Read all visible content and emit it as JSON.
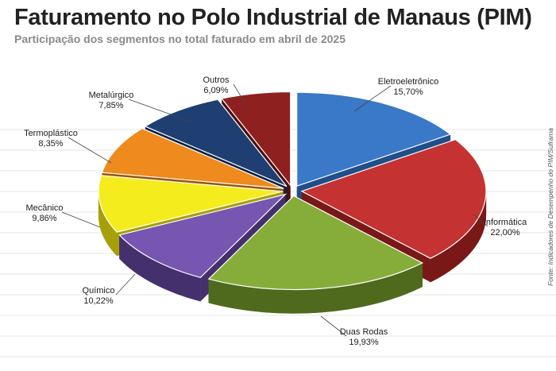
{
  "header": {
    "title": "Faturamento no Polo Industrial de Manaus (PIM)",
    "subtitle": "Participação dos segmentos no total faturado em abril de 2025"
  },
  "source": "Fonte: Indicadores de Desempenho do PIM/Suframa",
  "chart_data": {
    "type": "pie",
    "style": "3d-exploded",
    "title": "Faturamento no Polo Industrial de Manaus (PIM)",
    "subtitle": "Participação dos segmentos no total faturado em abril de 2025",
    "slices": [
      {
        "label": "Eletroeletrônico",
        "value": 15.7,
        "display": "15,70%",
        "color": "#3a78c8",
        "side": "#1f4f8a"
      },
      {
        "label": "Informática",
        "value": 22.0,
        "display": "22,00%",
        "color": "#c43232",
        "side": "#7a1818"
      },
      {
        "label": "Duas Rodas",
        "value": 19.93,
        "display": "19,93%",
        "color": "#86ad3a",
        "side": "#4f6a1c"
      },
      {
        "label": "Químico",
        "value": 10.22,
        "display": "10,22%",
        "color": "#7656b0",
        "side": "#45306e"
      },
      {
        "label": "Mecânico",
        "value": 9.86,
        "display": "9,86%",
        "color": "#f5ec1e",
        "side": "#a79f08"
      },
      {
        "label": "Termoplástico",
        "value": 8.35,
        "display": "8,35%",
        "color": "#ee8a1e",
        "side": "#9c5608"
      },
      {
        "label": "Metalúrgico",
        "value": 7.85,
        "display": "7,85%",
        "color": "#1f3f72",
        "side": "#0f2244"
      },
      {
        "label": "Outros",
        "value": 6.09,
        "display": "6,09%",
        "color": "#8e2020",
        "side": "#4e0f0f"
      }
    ],
    "legend": "none"
  }
}
